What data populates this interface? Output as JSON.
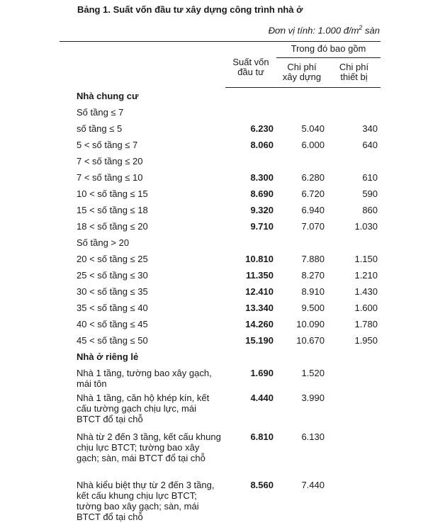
{
  "title": "Bảng 1. Suất vốn đầu tư xây dựng công trình nhà ở",
  "unit_prefix": "Đơn vị tính: 1.000 đ/m",
  "unit_sup": "2",
  "unit_suffix": " sàn",
  "headers": {
    "total": "Suất vốn đầu tư",
    "group": "Trong đó bao gồm",
    "construction": "Chi phí xây dựng",
    "equipment": "Chi phí thiết bị"
  },
  "rows": [
    {
      "label": "Nhà chung cư",
      "section": true
    },
    {
      "label": "Số tầng ≤ 7"
    },
    {
      "label": "số tầng ≤ 5",
      "total": "6.230",
      "construction": "5.040",
      "equipment": "340"
    },
    {
      "label": "5 < số tầng ≤ 7",
      "total": "8.060",
      "construction": "6.000",
      "equipment": "640"
    },
    {
      "label": "7 < số tầng ≤ 20"
    },
    {
      "label": "7 < số tầng ≤ 10",
      "total": "8.300",
      "construction": "6.280",
      "equipment": "610"
    },
    {
      "label": "10 < số tầng ≤ 15",
      "total": "8.690",
      "construction": "6.720",
      "equipment": "590"
    },
    {
      "label": "15 < số tầng ≤ 18",
      "total": "9.320",
      "construction": "6.940",
      "equipment": "860"
    },
    {
      "label": "18 < số tầng ≤ 20",
      "total": "9.710",
      "construction": "7.070",
      "equipment": "1.030"
    },
    {
      "label": "Số tầng > 20"
    },
    {
      "label": "20 < số tầng ≤ 25",
      "total": "10.810",
      "construction": "7.880",
      "equipment": "1.150"
    },
    {
      "label": "25 < số tầng ≤ 30",
      "total": "11.350",
      "construction": "8.270",
      "equipment": "1.210"
    },
    {
      "label": "30 < số tầng ≤ 35",
      "total": "12.410",
      "construction": "8.910",
      "equipment": "1.430"
    },
    {
      "label": "35 < số tầng ≤ 40",
      "total": "13.340",
      "construction": "9.500",
      "equipment": "1.600"
    },
    {
      "label": "40 < số tầng ≤ 45",
      "total": "14.260",
      "construction": "10.090",
      "equipment": "1.780"
    },
    {
      "label": "45 < số tầng ≤ 50",
      "total": "15.190",
      "construction": "10.670",
      "equipment": "1.950"
    },
    {
      "label": "Nhà ở riêng lẻ",
      "section": true
    },
    {
      "label": " Nhà 1 tầng, tường bao xây gạch, mái tôn",
      "total": "1.690",
      "construction": "1.520",
      "equipment": "",
      "multi": true
    },
    {
      "label": "Nhà 1 tầng, căn hộ khép kín, kết cấu tường gạch chịu lực, mái BTCT đổ tại chỗ",
      "total": "4.440",
      "construction": "3.990",
      "equipment": "",
      "multi": true
    },
    {
      "label": "Nhà từ 2 đến 3 tầng, kết cấu khung chịu lực BTCT; tường bao xây gạch; sàn, mái BTCT đổ tại chỗ",
      "total": "6.810",
      "construction": "6.130",
      "equipment": "",
      "multi": true
    },
    {
      "label": "Nhà kiểu biệt thự từ 2 đến 3 tầng, kết cấu khung chịu lực BTCT; tường bao xây gạch; sàn, mái BTCT đổ tại chỗ",
      "total": "8.560",
      "construction": "7.440",
      "equipment": "",
      "multi": true
    }
  ]
}
